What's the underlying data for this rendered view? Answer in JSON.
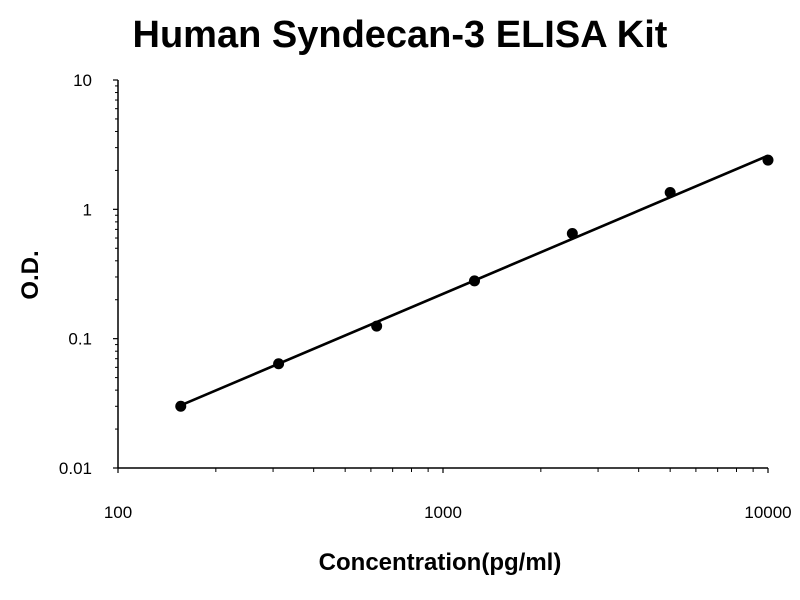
{
  "chart_data": {
    "type": "scatter",
    "title": "Human Syndecan-3 ELISA Kit",
    "xlabel": "Concentration(pg/ml)",
    "ylabel": "O.D.",
    "x_scale": "log",
    "y_scale": "log",
    "xlim": [
      100,
      10000
    ],
    "ylim": [
      0.01,
      10
    ],
    "x_ticks": [
      "100",
      "1000",
      "10000"
    ],
    "y_ticks": [
      "0.01",
      "0.1",
      "1",
      "10"
    ],
    "grid": false,
    "legend": "none",
    "series": [
      {
        "x": [
          156,
          312,
          625,
          1250,
          2500,
          5000,
          10000
        ],
        "y": [
          0.03,
          0.064,
          0.125,
          0.28,
          0.65,
          1.35,
          2.4
        ]
      }
    ],
    "fit_line": {
      "x": [
        156,
        10000
      ],
      "y": [
        0.0305,
        2.6
      ]
    },
    "colors": {
      "marker": "#000000",
      "line": "#000000",
      "axis": "#000000"
    }
  }
}
